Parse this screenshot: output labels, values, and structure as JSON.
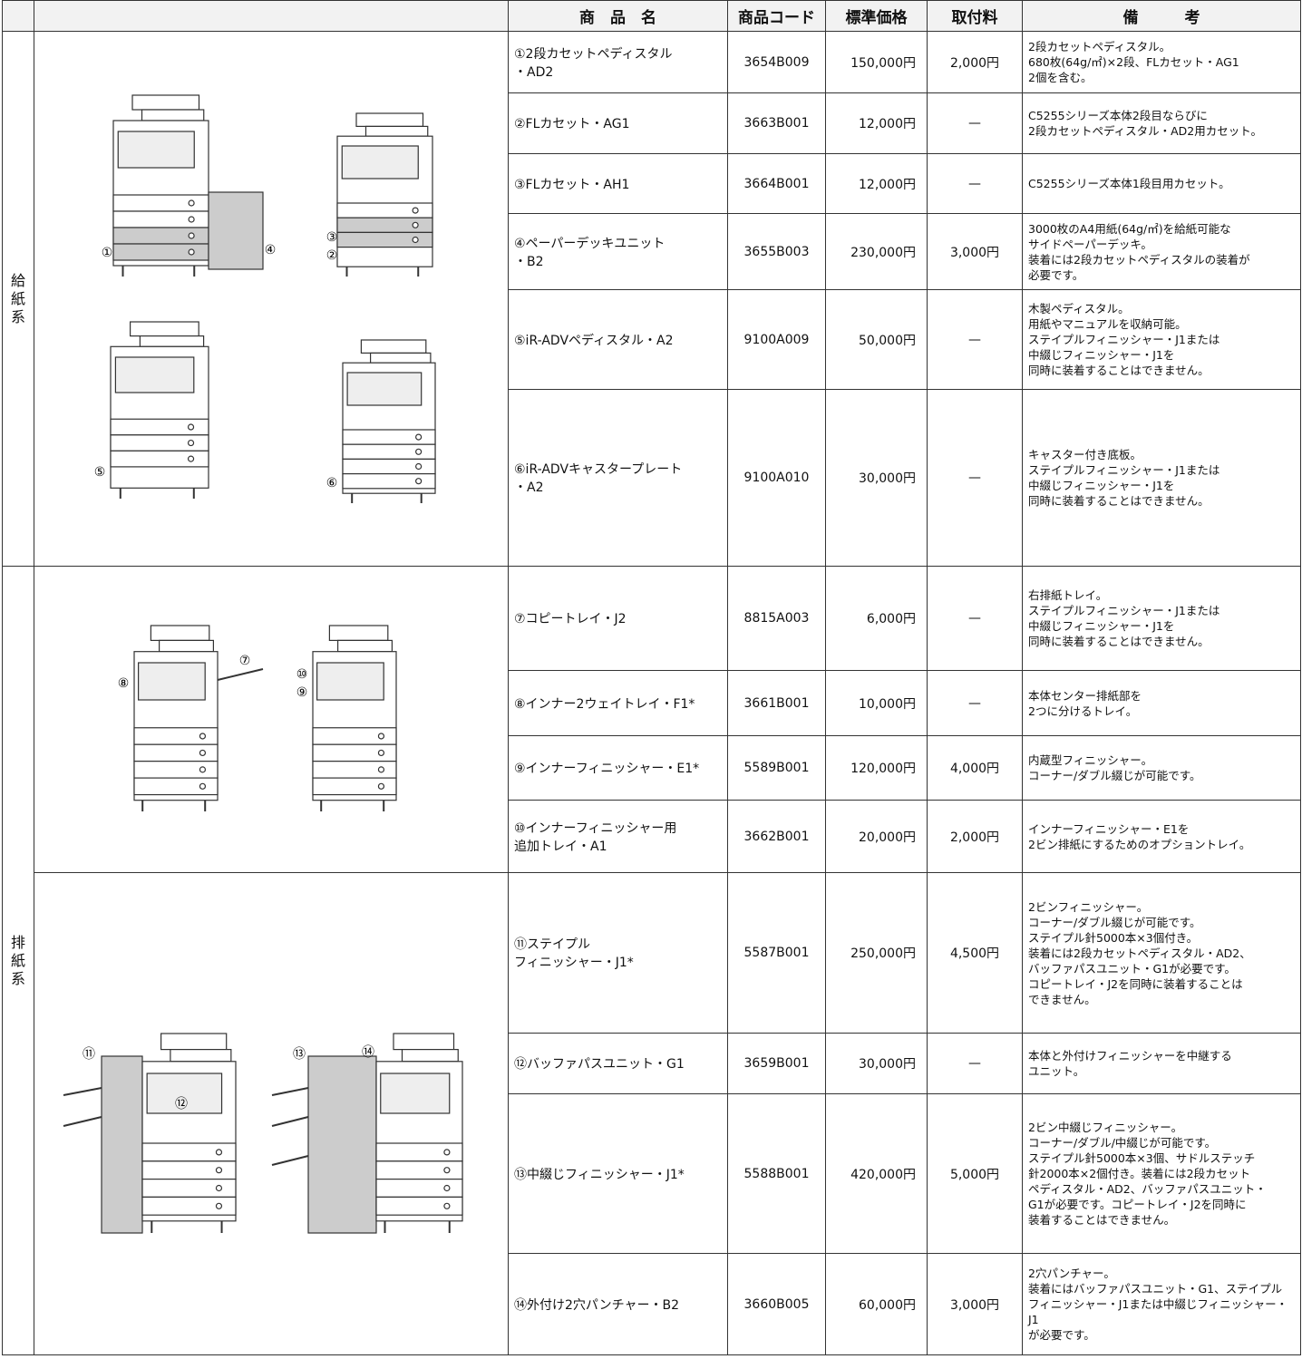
{
  "header": {
    "name": "商　品　名",
    "code": "商品コード",
    "price": "標準価格",
    "fee": "取付料",
    "note": "備　　　考"
  },
  "sections": [
    {
      "label": [
        "給",
        "紙",
        "系"
      ]
    },
    {
      "label": [
        "排",
        "紙",
        "系"
      ]
    }
  ],
  "figures": [
    {
      "labels": [
        "①",
        "④",
        "③",
        "②",
        "⑤",
        "⑥"
      ]
    },
    {
      "labels": [
        "⑦",
        "⑧",
        "⑩",
        "⑨"
      ]
    },
    {
      "labels": [
        "⑪",
        "⑫",
        "⑬",
        "⑭"
      ]
    }
  ],
  "rows": [
    {
      "name": [
        "①2段カセットペディスタル",
        "・AD2"
      ],
      "code": "3654B009",
      "price": "150,000円",
      "fee": "2,000円",
      "note": [
        "2段カセットペディスタル。",
        "680枚(64g/㎡)×2段、FLカセット・AG1",
        "2個を含む。"
      ]
    },
    {
      "name": [
        "②FLカセット・AG1"
      ],
      "code": "3663B001",
      "price": "12,000円",
      "fee": "—",
      "note": [
        "C5255シリーズ本体2段目ならびに",
        "2段カセットペディスタル・AD2用カセット。"
      ]
    },
    {
      "name": [
        "③FLカセット・AH1"
      ],
      "code": "3664B001",
      "price": "12,000円",
      "fee": "—",
      "note": [
        "C5255シリーズ本体1段目用カセット。"
      ]
    },
    {
      "name": [
        "④ペーパーデッキユニット",
        "・B2"
      ],
      "code": "3655B003",
      "price": "230,000円",
      "fee": "3,000円",
      "note": [
        "3000枚のA4用紙(64g/㎡)を給紙可能な",
        "サイドペーパーデッキ。",
        "装着には2段カセットペディスタルの装着が",
        "必要です。"
      ]
    },
    {
      "name": [
        "⑤iR-ADVペディスタル・A2"
      ],
      "code": "9100A009",
      "price": "50,000円",
      "fee": "—",
      "note": [
        "木製ペディスタル。",
        "用紙やマニュアルを収納可能。",
        "ステイプルフィニッシャー・J1または",
        "中綴じフィニッシャー・J1を",
        "同時に装着することはできません。"
      ]
    },
    {
      "name": [
        "⑥iR-ADVキャスタープレート",
        "・A2"
      ],
      "code": "9100A010",
      "price": "30,000円",
      "fee": "—",
      "note": [
        "キャスター付き底板。",
        "ステイプルフィニッシャー・J1または",
        "中綴じフィニッシャー・J1を",
        "同時に装着することはできません。"
      ]
    },
    {
      "name": [
        "⑦コピートレイ・J2"
      ],
      "code": "8815A003",
      "price": "6,000円",
      "fee": "—",
      "note": [
        "右排紙トレイ。",
        "ステイプルフィニッシャー・J1または",
        "中綴じフィニッシャー・J1を",
        "同時に装着することはできません。"
      ]
    },
    {
      "name": [
        "⑧インナー2ウェイトレイ・F1*"
      ],
      "code": "3661B001",
      "price": "10,000円",
      "fee": "—",
      "note": [
        "本体センター排紙部を",
        "2つに分けるトレイ。"
      ]
    },
    {
      "name": [
        "⑨インナーフィニッシャー・E1*"
      ],
      "code": "5589B001",
      "price": "120,000円",
      "fee": "4,000円",
      "note": [
        "内蔵型フィニッシャー。",
        "コーナー/ダブル綴じが可能です。"
      ]
    },
    {
      "name": [
        "⑩インナーフィニッシャー用",
        "追加トレイ・A1"
      ],
      "code": "3662B001",
      "price": "20,000円",
      "fee": "2,000円",
      "note": [
        "インナーフィニッシャー・E1を",
        "2ビン排紙にするためのオプショントレイ。"
      ]
    },
    {
      "name": [
        "⑪ステイプル",
        "フィニッシャー・J1*"
      ],
      "code": "5587B001",
      "price": "250,000円",
      "fee": "4,500円",
      "note": [
        "2ビンフィニッシャー。",
        "コーナー/ダブル綴じが可能です。",
        "ステイプル針5000本×3個付き。",
        "装着には2段カセットペディスタル・AD2、",
        "バッファパスユニット・G1が必要です。",
        "コピートレイ・J2を同時に装着することは",
        "できません。"
      ]
    },
    {
      "name": [
        "⑫バッファパスユニット・G1"
      ],
      "code": "3659B001",
      "price": "30,000円",
      "fee": "—",
      "note": [
        "本体と外付けフィニッシャーを中継する",
        "ユニット。"
      ]
    },
    {
      "name": [
        "⑬中綴じフィニッシャー・J1*"
      ],
      "code": "5588B001",
      "price": "420,000円",
      "fee": "5,000円",
      "note": [
        "2ビン中綴じフィニッシャー。",
        "コーナー/ダブル/中綴じが可能です。",
        "ステイプル針5000本×3個、サドルステッチ",
        "針2000本×2個付き。装着には2段カセット",
        "ペディスタル・AD2、バッファパスユニット・",
        "G1が必要です。コピートレイ・J2を同時に",
        "装着することはできません。"
      ]
    },
    {
      "name": [
        "⑭外付け2穴パンチャー・B2"
      ],
      "code": "3660B005",
      "price": "60,000円",
      "fee": "3,000円",
      "note": [
        "2穴パンチャー。",
        "装着にはバッファパスユニット・G1、ステイプル",
        "フィニッシャー・J1または中綴じフィニッシャー・J1",
        "が必要です。"
      ]
    }
  ]
}
